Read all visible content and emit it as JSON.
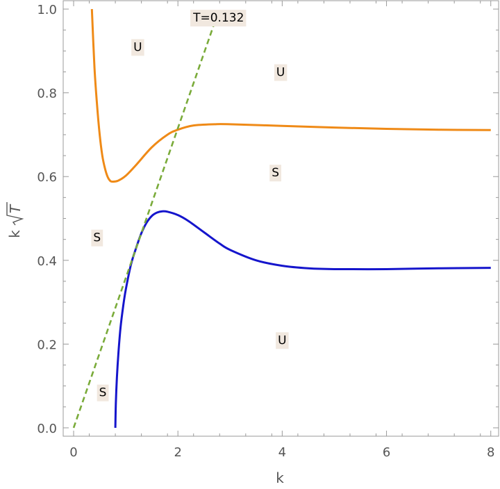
{
  "chart_data": {
    "type": "line",
    "xlabel": "k",
    "ylabel": "k",
    "ylabel_radical": "T",
    "xlim": [
      -0.2,
      8.15
    ],
    "ylim": [
      -0.02,
      1.02
    ],
    "x_ticks": [
      0,
      2,
      4,
      6,
      8
    ],
    "x_tick_labels": [
      "0",
      "2",
      "4",
      "6",
      "8"
    ],
    "y_ticks": [
      0.0,
      0.2,
      0.4,
      0.6,
      0.8,
      1.0
    ],
    "y_tick_labels": [
      "0.0",
      "0.2",
      "0.4",
      "0.6",
      "0.8",
      "1.0"
    ],
    "grid": false,
    "series": [
      {
        "color": "#ef8a17",
        "style": "solid",
        "x": [
          0.35,
          0.4,
          0.45,
          0.5,
          0.55,
          0.6,
          0.65,
          0.7,
          0.75,
          0.85,
          1.0,
          1.2,
          1.5,
          1.8,
          2.0,
          2.3,
          2.7,
          3.0,
          4.0,
          5.0,
          6.0,
          7.0,
          8.0
        ],
        "y": [
          1.0,
          0.86,
          0.77,
          0.7,
          0.65,
          0.62,
          0.6,
          0.59,
          0.588,
          0.59,
          0.602,
          0.628,
          0.67,
          0.7,
          0.712,
          0.722,
          0.725,
          0.725,
          0.721,
          0.717,
          0.714,
          0.712,
          0.711
        ]
      },
      {
        "color": "#1515cc",
        "style": "solid",
        "x": [
          0.8,
          0.81,
          0.83,
          0.86,
          0.9,
          0.95,
          1.0,
          1.1,
          1.2,
          1.3,
          1.4,
          1.5,
          1.6,
          1.7,
          1.8,
          2.0,
          2.2,
          2.5,
          2.8,
          3.0,
          3.5,
          4.0,
          4.5,
          5.0,
          6.0,
          7.0,
          8.0
        ],
        "y": [
          0.0,
          0.06,
          0.12,
          0.18,
          0.24,
          0.29,
          0.33,
          0.39,
          0.43,
          0.465,
          0.49,
          0.506,
          0.514,
          0.517,
          0.516,
          0.508,
          0.494,
          0.467,
          0.44,
          0.425,
          0.4,
          0.387,
          0.381,
          0.379,
          0.379,
          0.381,
          0.382
        ]
      },
      {
        "color": "#7aab3a",
        "style": "dashed",
        "x": [
          0.0,
          2.78
        ],
        "y": [
          0.0,
          0.995
        ]
      }
    ],
    "annotations": [
      {
        "text": "T=0.132",
        "x": 2.78,
        "y": 0.98
      },
      {
        "text": "U",
        "x": 1.23,
        "y": 0.91
      },
      {
        "text": "U",
        "x": 3.97,
        "y": 0.85
      },
      {
        "text": "S",
        "x": 3.87,
        "y": 0.61
      },
      {
        "text": "S",
        "x": 0.45,
        "y": 0.455
      },
      {
        "text": "U",
        "x": 4.0,
        "y": 0.21
      },
      {
        "text": "S",
        "x": 0.56,
        "y": 0.085
      }
    ]
  }
}
